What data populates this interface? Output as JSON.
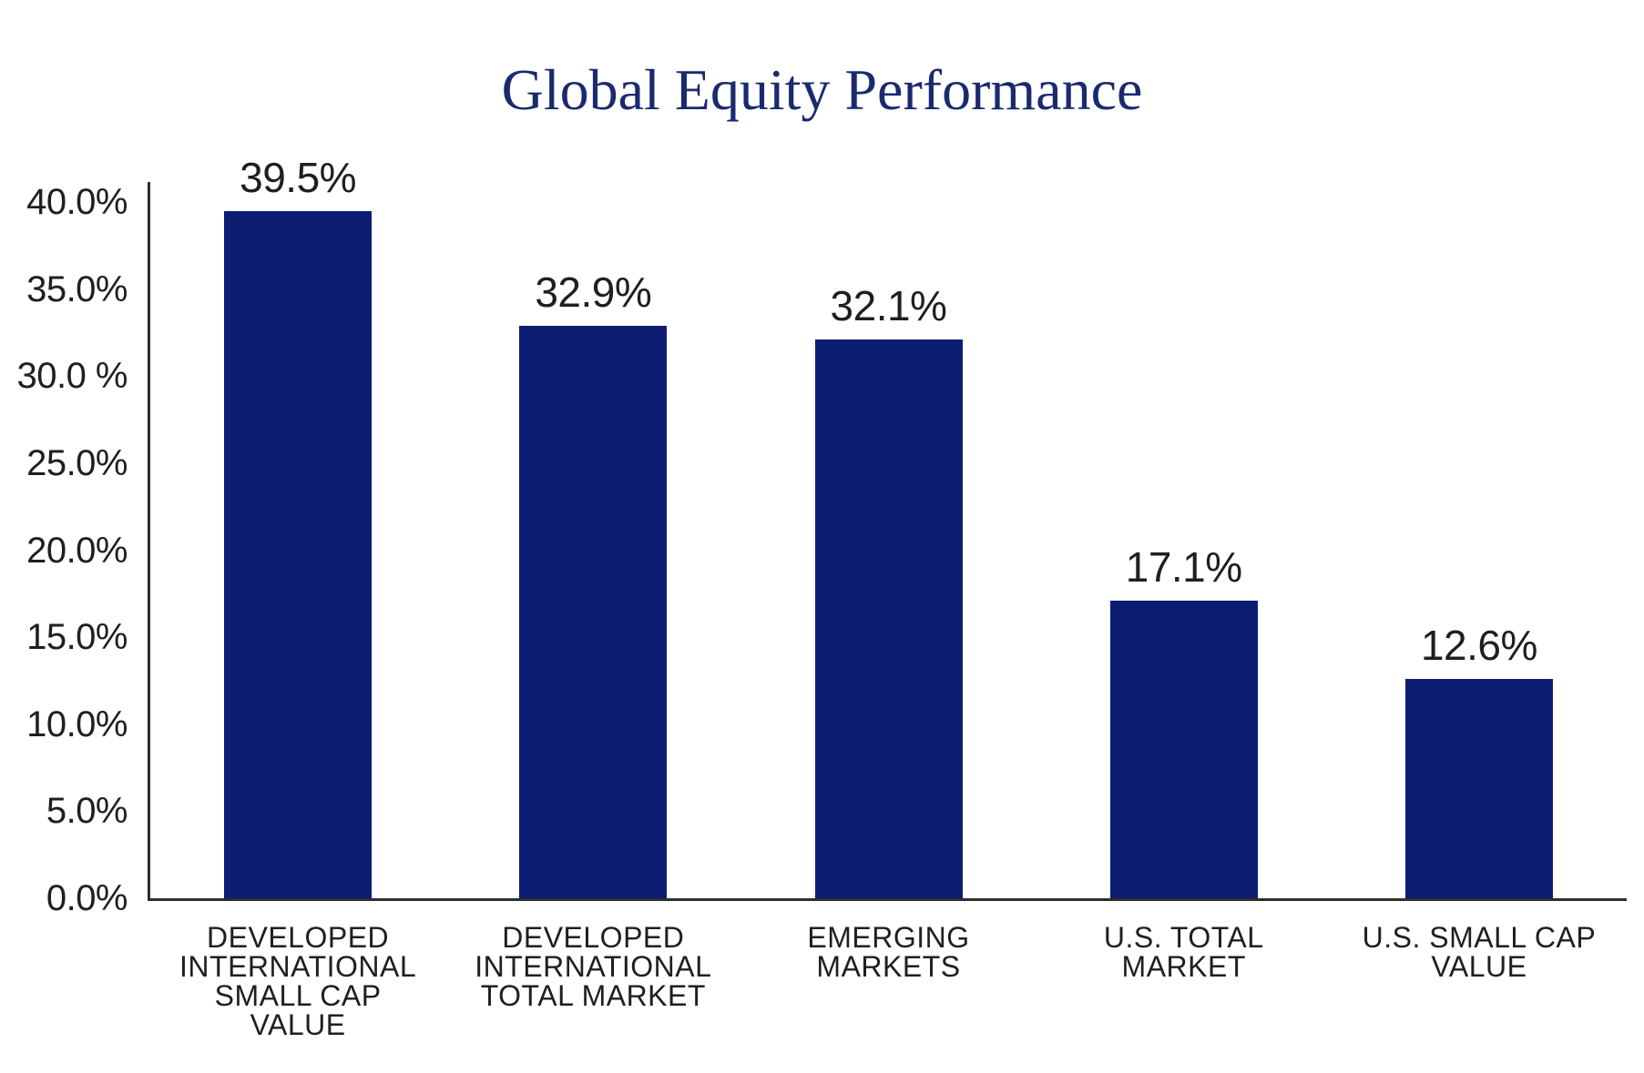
{
  "chart_data": {
    "type": "bar",
    "title": "Global Equity Performance",
    "categories": [
      "DEVELOPED\nINTERNATIONAL\nSMALL CAP\nVALUE",
      "DEVELOPED\nINTERNATIONAL\nTOTAL MARKET",
      "EMERGING\nMARKETS",
      "U.S. TOTAL\nMARKET",
      "U.S. SMALL CAP\nVALUE"
    ],
    "values": [
      39.5,
      32.9,
      32.1,
      17.1,
      12.6
    ],
    "value_labels": [
      "39.5%",
      "32.9%",
      "32.1%",
      "17.1%",
      "12.6%"
    ],
    "y_ticks": [
      "40.0%",
      "35.0%",
      "30.0 %",
      "25.0%",
      "20.0%",
      "15.0%",
      "10.0%",
      "5.0%",
      "0.0%"
    ],
    "ylim": [
      0,
      40
    ],
    "xlabel": "",
    "ylabel": "",
    "grid": false,
    "legend": "none",
    "colors": {
      "bar": "#0d1d72",
      "title": "#1a2a6e",
      "axis": "#2e2e2e",
      "text": "#1f1f1f",
      "background": "#ffffff"
    }
  }
}
